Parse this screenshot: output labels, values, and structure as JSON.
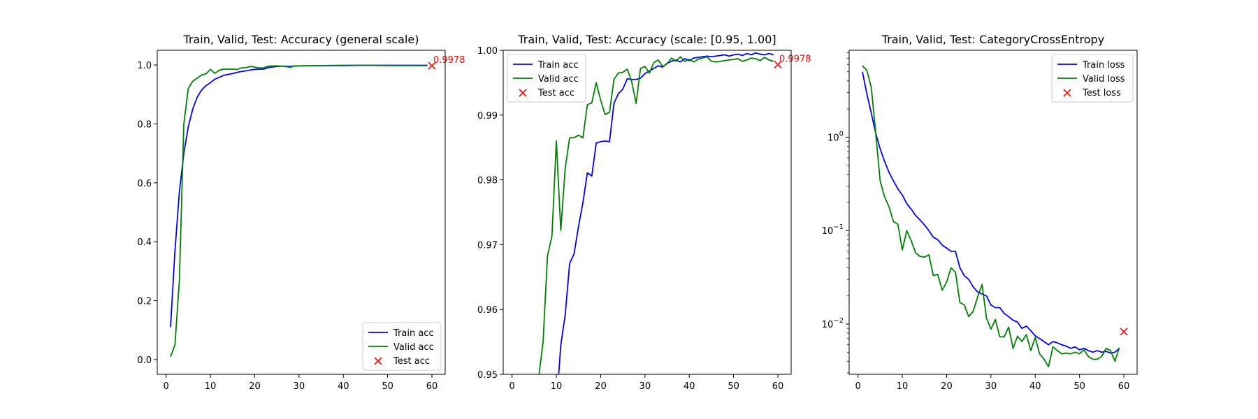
{
  "chart_data": [
    {
      "type": "line",
      "title": "Train, Valid, Test: Accuracy (general scale)",
      "xlabel": "",
      "ylabel": "",
      "xlim": [
        -2,
        63
      ],
      "ylim": [
        -0.05,
        1.05
      ],
      "yscale": "linear",
      "xticks": [
        0,
        10,
        20,
        30,
        40,
        50,
        60
      ],
      "xtick_labels": [
        "0",
        "10",
        "20",
        "30",
        "40",
        "50",
        "60"
      ],
      "yticks": [
        0.0,
        0.2,
        0.4,
        0.6,
        0.8,
        1.0
      ],
      "ytick_labels": [
        "0.0",
        "0.2",
        "0.4",
        "0.6",
        "0.8",
        "1.0"
      ],
      "grid": false,
      "legend_position": "lower-right",
      "series": [
        {
          "name": "Train acc",
          "color": "#0000ff",
          "x": [
            1,
            2,
            3,
            4,
            5,
            6,
            7,
            8,
            9,
            10,
            11,
            12,
            13,
            14,
            15,
            16,
            17,
            18,
            19,
            20,
            21,
            22,
            23,
            24,
            25,
            26,
            27,
            28,
            29,
            30,
            35,
            40,
            45,
            50,
            55,
            59
          ],
          "y": [
            0.11,
            0.37,
            0.57,
            0.7,
            0.79,
            0.85,
            0.89,
            0.915,
            0.93,
            0.94,
            0.952,
            0.958,
            0.965,
            0.968,
            0.971,
            0.975,
            0.978,
            0.98,
            0.983,
            0.985,
            0.986,
            0.986,
            0.991,
            0.993,
            0.995,
            0.996,
            0.996,
            0.995,
            0.996,
            0.997,
            0.998,
            0.998,
            0.999,
            0.999,
            0.999,
            0.999
          ]
        },
        {
          "name": "Valid acc",
          "color": "#008000",
          "x": [
            1,
            2,
            3,
            4,
            5,
            6,
            7,
            8,
            9,
            10,
            11,
            12,
            13,
            14,
            15,
            16,
            17,
            18,
            19,
            20,
            21,
            22,
            23,
            24,
            25,
            26,
            27,
            28,
            29,
            30,
            35,
            40,
            45,
            50,
            55,
            59
          ],
          "y": [
            0.01,
            0.05,
            0.27,
            0.8,
            0.92,
            0.945,
            0.955,
            0.966,
            0.97,
            0.985,
            0.972,
            0.982,
            0.986,
            0.986,
            0.986,
            0.985,
            0.99,
            0.991,
            0.995,
            0.993,
            0.99,
            0.99,
            0.996,
            0.997,
            0.997,
            0.996,
            0.995,
            0.992,
            0.997,
            0.997,
            0.998,
            0.999,
            0.999,
            0.998,
            0.998,
            0.998
          ]
        }
      ],
      "test_point": {
        "name": "Test acc",
        "color": "#ff0000",
        "x": 60,
        "y": 0.9978,
        "label": "0.9978"
      }
    },
    {
      "type": "line",
      "title": "Train, Valid, Test: Accuracy (scale: [0.95, 1.00]",
      "xlabel": "",
      "ylabel": "",
      "xlim": [
        -2,
        63
      ],
      "ylim": [
        0.95,
        1.0
      ],
      "yscale": "linear",
      "xticks": [
        0,
        10,
        20,
        30,
        40,
        50,
        60
      ],
      "xtick_labels": [
        "0",
        "10",
        "20",
        "30",
        "40",
        "50",
        "60"
      ],
      "yticks": [
        0.95,
        0.96,
        0.97,
        0.98,
        0.99,
        1.0
      ],
      "ytick_labels": [
        "0.95",
        "0.96",
        "0.97",
        "0.98",
        "0.99",
        "1.00"
      ],
      "grid": false,
      "legend_position": "top-left",
      "series": [
        {
          "name": "Train acc",
          "color": "#0000ff",
          "x": [
            10,
            11,
            12,
            13,
            14,
            15,
            16,
            17,
            18,
            19,
            20,
            21,
            22,
            23,
            24,
            25,
            26,
            27,
            28,
            29,
            30,
            31,
            32,
            33,
            34,
            35,
            36,
            37,
            38,
            39,
            40,
            41,
            42,
            43,
            44,
            45,
            46,
            47,
            48,
            49,
            50,
            51,
            52,
            53,
            54,
            55,
            56,
            57,
            58,
            59
          ],
          "y": [
            0.945,
            0.9545,
            0.9592,
            0.9671,
            0.9686,
            0.9728,
            0.9765,
            0.9811,
            0.9806,
            0.9857,
            0.9859,
            0.986,
            0.9859,
            0.9918,
            0.9933,
            0.994,
            0.9956,
            0.9955,
            0.9955,
            0.9957,
            0.9964,
            0.9968,
            0.9972,
            0.9976,
            0.9974,
            0.998,
            0.9983,
            0.9985,
            0.9982,
            0.9987,
            0.9984,
            0.9988,
            0.9989,
            0.999,
            0.9991,
            0.999,
            0.9991,
            0.9992,
            0.9993,
            0.9991,
            0.9993,
            0.9994,
            0.9992,
            0.9995,
            0.9993,
            0.9996,
            0.9994,
            0.9993,
            0.9995,
            0.9993
          ]
        },
        {
          "name": "Valid acc",
          "color": "#008000",
          "x": [
            6,
            7,
            8,
            9,
            10,
            11,
            12,
            13,
            14,
            15,
            16,
            17,
            18,
            19,
            20,
            21,
            22,
            23,
            24,
            25,
            26,
            27,
            28,
            29,
            30,
            31,
            32,
            33,
            34,
            35,
            36,
            37,
            38,
            39,
            40,
            41,
            42,
            43,
            44,
            45,
            46,
            47,
            48,
            49,
            50,
            51,
            52,
            53,
            54,
            55,
            56,
            57,
            58,
            59
          ],
          "y": [
            0.9495,
            0.955,
            0.9683,
            0.9713,
            0.986,
            0.9722,
            0.9818,
            0.9865,
            0.9865,
            0.9869,
            0.9865,
            0.9916,
            0.9919,
            0.995,
            0.9923,
            0.9901,
            0.9904,
            0.9955,
            0.9965,
            0.9966,
            0.9971,
            0.9952,
            0.9918,
            0.9972,
            0.9975,
            0.9965,
            0.9981,
            0.9985,
            0.9975,
            0.9979,
            0.9988,
            0.9983,
            0.999,
            0.9983,
            0.9986,
            0.9982,
            0.9986,
            0.9988,
            0.999,
            0.9983,
            0.9982,
            0.9983,
            0.9984,
            0.9985,
            0.9986,
            0.9987,
            0.9983,
            0.9985,
            0.9988,
            0.9987,
            0.9984,
            0.9989,
            0.9985,
            0.9983
          ]
        }
      ],
      "test_point": {
        "name": "Test acc",
        "color": "#ff0000",
        "x": 60,
        "y": 0.9978,
        "label": "0.9978"
      }
    },
    {
      "type": "line",
      "title": "Train, Valid, Test: CategoryCrossEntropy",
      "xlabel": "",
      "ylabel": "",
      "xlim": [
        -2,
        63
      ],
      "ylim": [
        0.0029,
        8.5
      ],
      "yscale": "log",
      "xticks": [
        0,
        10,
        20,
        30,
        40,
        50,
        60
      ],
      "xtick_labels": [
        "0",
        "10",
        "20",
        "30",
        "40",
        "50",
        "60"
      ],
      "yticks": [
        0.01,
        0.1,
        1.0
      ],
      "ytick_labels": [
        "10",
        "10",
        "10"
      ],
      "ytick_exponents": [
        "−2",
        "−1",
        "0"
      ],
      "grid": false,
      "legend_position": "top-right",
      "series": [
        {
          "name": "Train loss",
          "color": "#0000ff",
          "x": [
            1,
            2,
            3,
            4,
            5,
            6,
            7,
            8,
            9,
            10,
            11,
            12,
            13,
            14,
            15,
            16,
            17,
            18,
            19,
            20,
            21,
            22,
            23,
            24,
            25,
            26,
            27,
            28,
            29,
            30,
            31,
            32,
            33,
            34,
            35,
            36,
            37,
            38,
            39,
            40,
            41,
            42,
            43,
            44,
            45,
            46,
            47,
            48,
            49,
            50,
            51,
            52,
            53,
            54,
            55,
            56,
            57,
            58,
            59
          ],
          "y": [
            5.0,
            2.9,
            1.8,
            1.1,
            0.75,
            0.55,
            0.42,
            0.34,
            0.28,
            0.24,
            0.195,
            0.17,
            0.145,
            0.13,
            0.115,
            0.1,
            0.085,
            0.08,
            0.07,
            0.065,
            0.06,
            0.06,
            0.04,
            0.033,
            0.03,
            0.025,
            0.022,
            0.021,
            0.02,
            0.016,
            0.015,
            0.015,
            0.013,
            0.012,
            0.011,
            0.0105,
            0.009,
            0.0095,
            0.0085,
            0.0075,
            0.007,
            0.0065,
            0.006,
            0.0065,
            0.0063,
            0.006,
            0.0058,
            0.0055,
            0.0057,
            0.0053,
            0.0055,
            0.0052,
            0.005,
            0.0052,
            0.005,
            0.0051,
            0.0049,
            0.005,
            0.0055
          ]
        },
        {
          "name": "Valid loss",
          "color": "#008000",
          "x": [
            1,
            2,
            3,
            4,
            5,
            6,
            7,
            8,
            9,
            10,
            11,
            12,
            13,
            14,
            15,
            16,
            17,
            18,
            19,
            20,
            21,
            22,
            23,
            24,
            25,
            26,
            27,
            28,
            29,
            30,
            31,
            32,
            33,
            34,
            35,
            36,
            37,
            38,
            39,
            40,
            41,
            42,
            43,
            44,
            45,
            46,
            47,
            48,
            49,
            50,
            51,
            52,
            53,
            54,
            55,
            56,
            57,
            58,
            59
          ],
          "y": [
            5.8,
            5.2,
            3.4,
            1.1,
            0.34,
            0.23,
            0.18,
            0.125,
            0.117,
            0.062,
            0.1,
            0.078,
            0.058,
            0.053,
            0.052,
            0.055,
            0.033,
            0.034,
            0.023,
            0.028,
            0.04,
            0.036,
            0.017,
            0.016,
            0.012,
            0.0137,
            0.0195,
            0.0265,
            0.0116,
            0.0088,
            0.0112,
            0.0073,
            0.0073,
            0.0093,
            0.0055,
            0.0074,
            0.0065,
            0.0077,
            0.0052,
            0.0072,
            0.0048,
            0.0042,
            0.0035,
            0.0057,
            0.0052,
            0.0048,
            0.0049,
            0.0048,
            0.005,
            0.0048,
            0.0053,
            0.0045,
            0.0042,
            0.0042,
            0.0045,
            0.0055,
            0.0052,
            0.004,
            0.0056
          ]
        }
      ],
      "test_point": {
        "name": "Test loss",
        "color": "#ff0000",
        "x": 60,
        "y": 0.0083,
        "label": ""
      }
    }
  ]
}
